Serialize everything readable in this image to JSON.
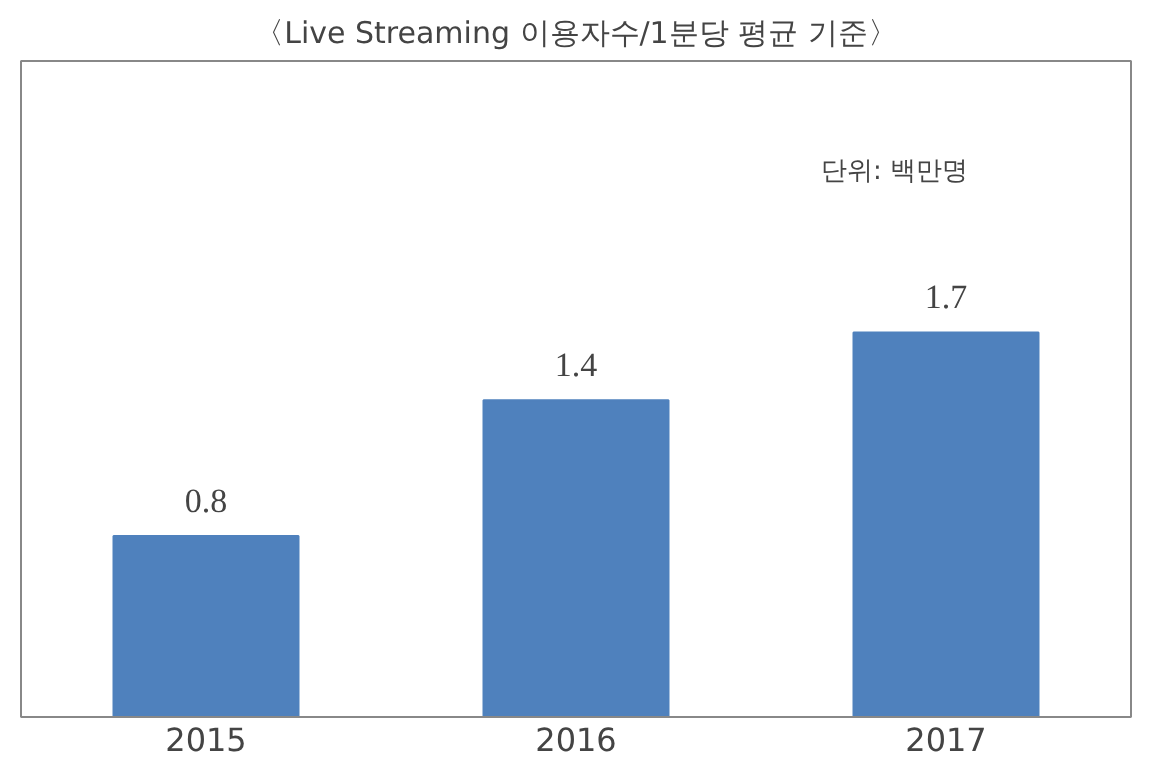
{
  "chart_data": {
    "type": "bar",
    "title": "〈Live Streaming 이용자수/1분당 평균 기준〉",
    "categories": [
      "2015",
      "2016",
      "2017"
    ],
    "values": [
      0.8,
      1.4,
      1.7
    ],
    "color": "#4f81bd",
    "data_labels": true,
    "ylim": [
      0,
      2.9
    ],
    "grid": false,
    "annotations": [
      "단위: 백만명"
    ]
  }
}
